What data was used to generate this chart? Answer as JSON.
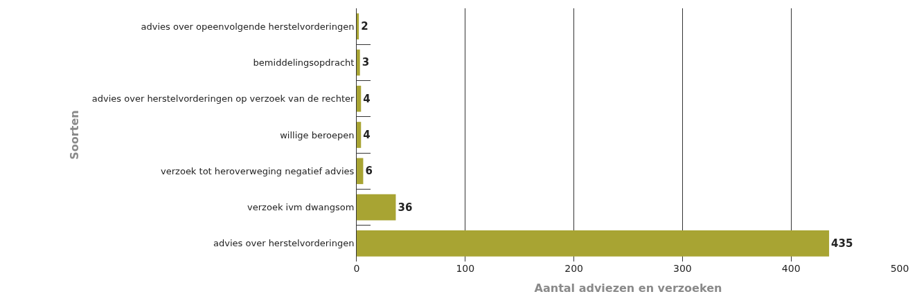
{
  "chart_data": {
    "type": "bar",
    "orientation": "horizontal",
    "xlabel": "Aantal adviezen en verzoeken",
    "ylabel": "Soorten",
    "categories": [
      "advies over opeenvolgende herstelvorderingen",
      "bemiddelingsopdracht",
      "advies over herstelvorderingen op verzoek van de rechter",
      "willige beroepen",
      "verzoek tot heroverweging negatief advies",
      "verzoek ivm dwangsom",
      "advies over herstelvorderingen"
    ],
    "values": [
      2,
      3,
      4,
      4,
      6,
      36,
      435
    ],
    "color": "#a8a433",
    "data_labels": true,
    "xlim": [
      0,
      500
    ],
    "xticks": [
      0,
      100,
      200,
      300,
      400,
      500
    ],
    "grid": "x",
    "legend": false
  }
}
